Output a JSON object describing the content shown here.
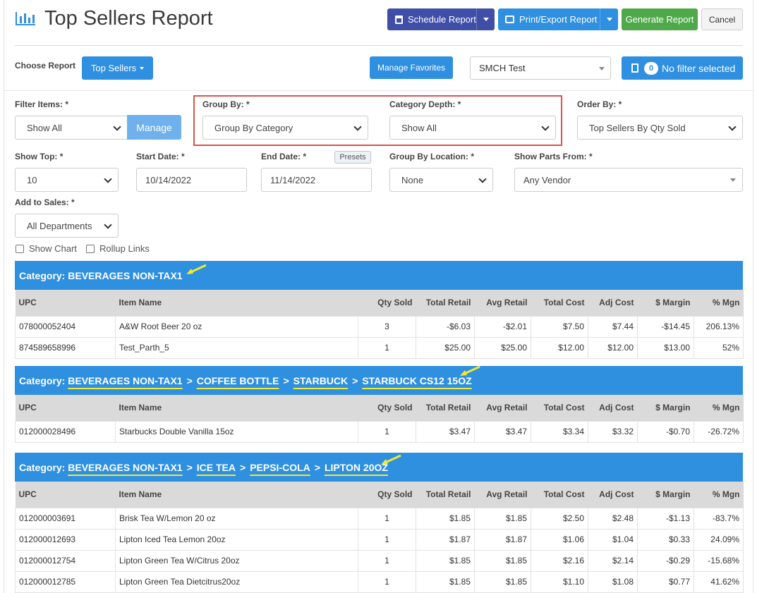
{
  "header": {
    "title": "Top Sellers Report",
    "schedule_label": "Schedule Report",
    "print_label": "Print/Export Report",
    "generate_label": "Generate Report",
    "cancel_label": "Cancel"
  },
  "toolbar": {
    "choose_report_label": "Choose Report",
    "report_type": "Top Sellers",
    "manage_favorites_label": "Manage Favorites",
    "store": "SMCH Test",
    "filter_count": "0",
    "filter_label": "No filter selected"
  },
  "filters": {
    "filter_items": {
      "label": "Filter Items: *",
      "value": "Show All",
      "manage_label": "Manage"
    },
    "group_by": {
      "label": "Group By: *",
      "value": "Group By Category"
    },
    "category_depth": {
      "label": "Category Depth: *",
      "value": "Show All"
    },
    "order_by": {
      "label": "Order By: *",
      "value": "Top Sellers By Qty Sold"
    },
    "show_top": {
      "label": "Show Top: *",
      "value": "10"
    },
    "start_date": {
      "label": "Start Date: *",
      "value": "10/14/2022"
    },
    "end_date": {
      "label": "End Date: *",
      "value": "11/14/2022",
      "presets_label": "Presets"
    },
    "group_by_location": {
      "label": "Group By Location: *",
      "value": "None"
    },
    "show_parts_from": {
      "label": "Show Parts From: *",
      "value": "Any Vendor"
    },
    "add_to_sales": {
      "label": "Add to Sales: *",
      "value": "All Departments"
    },
    "show_chart_label": "Show Chart",
    "rollup_links_label": "Rollup Links"
  },
  "columns": [
    "UPC",
    "Item Name",
    "Qty Sold",
    "Total Retail",
    "Avg Retail",
    "Total Cost",
    "Adj Cost",
    "$ Margin",
    "% Mgn"
  ],
  "groups": [
    {
      "prefix": "Category:",
      "crumbs": [
        "BEVERAGES NON-TAX1"
      ],
      "rows": [
        [
          "078000052404",
          "A&W Root Beer 20 oz",
          "3",
          "-$6.03",
          "-$2.01",
          "$7.50",
          "$7.44",
          "-$14.45",
          "206.13%"
        ],
        [
          "874589658996",
          "Test_Parth_5",
          "1",
          "$25.00",
          "$25.00",
          "$12.00",
          "$12.00",
          "$13.00",
          "52%"
        ]
      ]
    },
    {
      "prefix": "Category:",
      "crumbs": [
        "BEVERAGES NON-TAX1",
        "COFFEE BOTTLE",
        "STARBUCK",
        "STARBUCK CS12 15OZ"
      ],
      "rows": [
        [
          "012000028496",
          "Starbucks Double Vanilla 15oz",
          "1",
          "$3.47",
          "$3.47",
          "$3.34",
          "$3.32",
          "-$0.70",
          "-26.72%"
        ]
      ]
    },
    {
      "prefix": "Category:",
      "crumbs": [
        "BEVERAGES NON-TAX1",
        "ICE TEA",
        "PEPSI-COLA",
        "LIPTON 20OZ"
      ],
      "rows": [
        [
          "012000003691",
          "Brisk Tea W/Lemon 20 oz",
          "1",
          "$1.85",
          "$1.85",
          "$2.50",
          "$2.48",
          "-$1.13",
          "-83.7%"
        ],
        [
          "012000012693",
          "Lipton Iced Tea Lemon 20oz",
          "1",
          "$1.87",
          "$1.87",
          "$1.06",
          "$1.04",
          "$0.33",
          "24.09%"
        ],
        [
          "012000012754",
          "Lipton Green Tea W/Citrus 20oz",
          "1",
          "$1.85",
          "$1.85",
          "$2.16",
          "$2.14",
          "-$0.29",
          "-15.68%"
        ],
        [
          "012000012785",
          "Lipton Green Tea Dietcitrus20oz",
          "1",
          "$1.85",
          "$1.85",
          "$1.10",
          "$1.08",
          "$0.77",
          "41.62%"
        ]
      ]
    }
  ],
  "separator": ">",
  "colors": {
    "primary": "#2f8fe0",
    "schedule": "#3f4ea6",
    "generate": "#4fa94a",
    "highlight": "#d9534f",
    "annotation": "#f2ea2a"
  }
}
